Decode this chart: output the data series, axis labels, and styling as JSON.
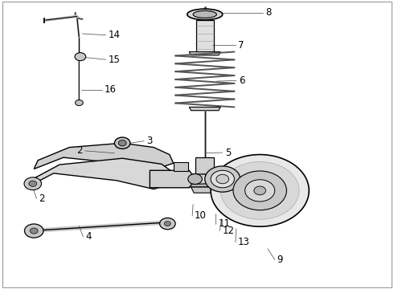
{
  "background_color": "#ffffff",
  "line_color": "#000000",
  "fig_width": 4.9,
  "fig_height": 3.6,
  "dpi": 100,
  "label_fontsize": 8.5
}
